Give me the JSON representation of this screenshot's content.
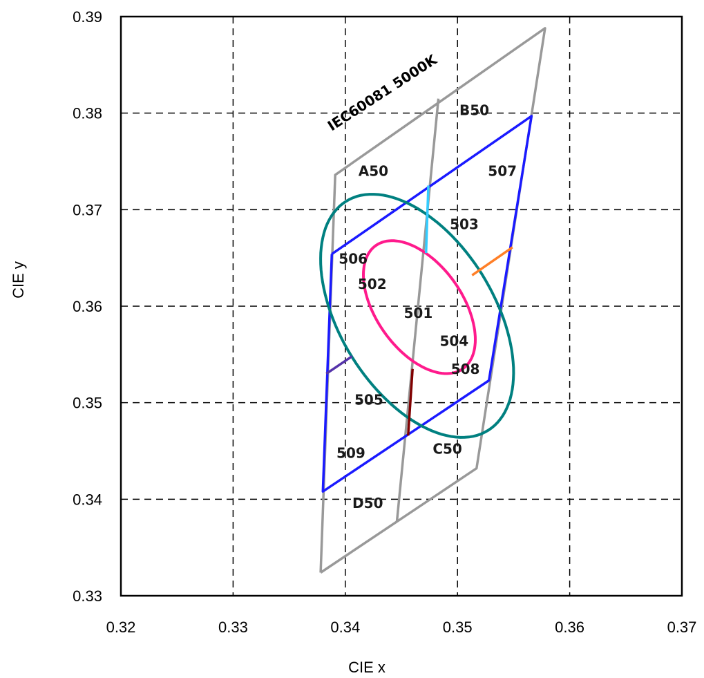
{
  "chart_data": {
    "type": "line",
    "xlabel": "CIE x",
    "ylabel": "CIE y",
    "xlim": [
      0.32,
      0.37
    ],
    "ylim": [
      0.33,
      0.39
    ],
    "xticks": [
      "0.32",
      "0.33",
      "0.34",
      "0.35",
      "0.36",
      "0.37"
    ],
    "yticks": [
      "0.33",
      "0.34",
      "0.35",
      "0.36",
      "0.37",
      "0.38",
      "0.39"
    ],
    "grid": true,
    "annotation": "IEC60081 5000K",
    "series": [
      {
        "color": "#999999",
        "points": [
          [
            0.3378,
            0.3324
          ],
          [
            0.3578,
            0.3888
          ],
          [
            0.3517,
            0.3432
          ],
          [
            0.3391,
            0.3736
          ]
        ],
        "segments": [
          [
            [
              0.3378,
              0.3324
            ],
            [
              0.3391,
              0.3736
            ],
            [
              0.3578,
              0.3888
            ],
            [
              0.3517,
              0.3432
            ],
            [
              0.3378,
              0.3324
            ]
          ],
          [
            [
              0.3446,
              0.3377
            ],
            [
              0.3483,
              0.3815
            ]
          ]
        ]
      },
      {
        "color": "#1a1aff",
        "points": [
          [
            0.3388,
            0.3654
          ],
          [
            0.3566,
            0.3797
          ],
          [
            0.3528,
            0.3523
          ],
          [
            0.338,
            0.3408
          ]
        ],
        "segments": [
          [
            [
              0.3388,
              0.3654
            ],
            [
              0.3566,
              0.3797
            ],
            [
              0.3528,
              0.3523
            ],
            [
              0.338,
              0.3408
            ],
            [
              0.3388,
              0.3654
            ]
          ]
        ]
      },
      {
        "color": "#008080",
        "ellipse": {
          "cx": 0.3464,
          "cy": 0.359,
          "rx": 0.0071,
          "ry": 0.0135,
          "angle_deg": 25
        }
      },
      {
        "color": "#ff1a8c",
        "ellipse": {
          "cx": 0.3466,
          "cy": 0.3599,
          "rx": 0.004,
          "ry": 0.0075,
          "angle_deg": 28
        }
      },
      {
        "color": "#33ccff",
        "segments": [
          [
            [
              0.3474,
              0.3725
            ],
            [
              0.3472,
              0.3655
            ]
          ]
        ]
      },
      {
        "color": "#ff7f27",
        "segments": [
          [
            [
              0.3513,
              0.3632
            ],
            [
              0.3549,
              0.3661
            ]
          ]
        ]
      },
      {
        "color": "#800000",
        "segments": [
          [
            [
              0.346,
              0.3535
            ],
            [
              0.3456,
              0.3466
            ]
          ]
        ]
      },
      {
        "color": "#5533aa",
        "segments": [
          [
            [
              0.3383,
              0.353
            ],
            [
              0.3406,
              0.3548
            ]
          ]
        ]
      }
    ],
    "region_labels": [
      {
        "text": "A50",
        "x": 0.3425,
        "y": 0.3735
      },
      {
        "text": "B50",
        "x": 0.3515,
        "y": 0.3798
      },
      {
        "text": "507",
        "x": 0.354,
        "y": 0.3735
      },
      {
        "text": "503",
        "x": 0.3506,
        "y": 0.368
      },
      {
        "text": "506",
        "x": 0.3407,
        "y": 0.3644
      },
      {
        "text": "502",
        "x": 0.3424,
        "y": 0.3618
      },
      {
        "text": "501",
        "x": 0.3465,
        "y": 0.3588
      },
      {
        "text": "504",
        "x": 0.3497,
        "y": 0.3559
      },
      {
        "text": "508",
        "x": 0.3507,
        "y": 0.353
      },
      {
        "text": "505",
        "x": 0.3421,
        "y": 0.3498
      },
      {
        "text": "509",
        "x": 0.3405,
        "y": 0.3443
      },
      {
        "text": "C50",
        "x": 0.3491,
        "y": 0.3447
      },
      {
        "text": "D50",
        "x": 0.342,
        "y": 0.3391
      }
    ]
  }
}
